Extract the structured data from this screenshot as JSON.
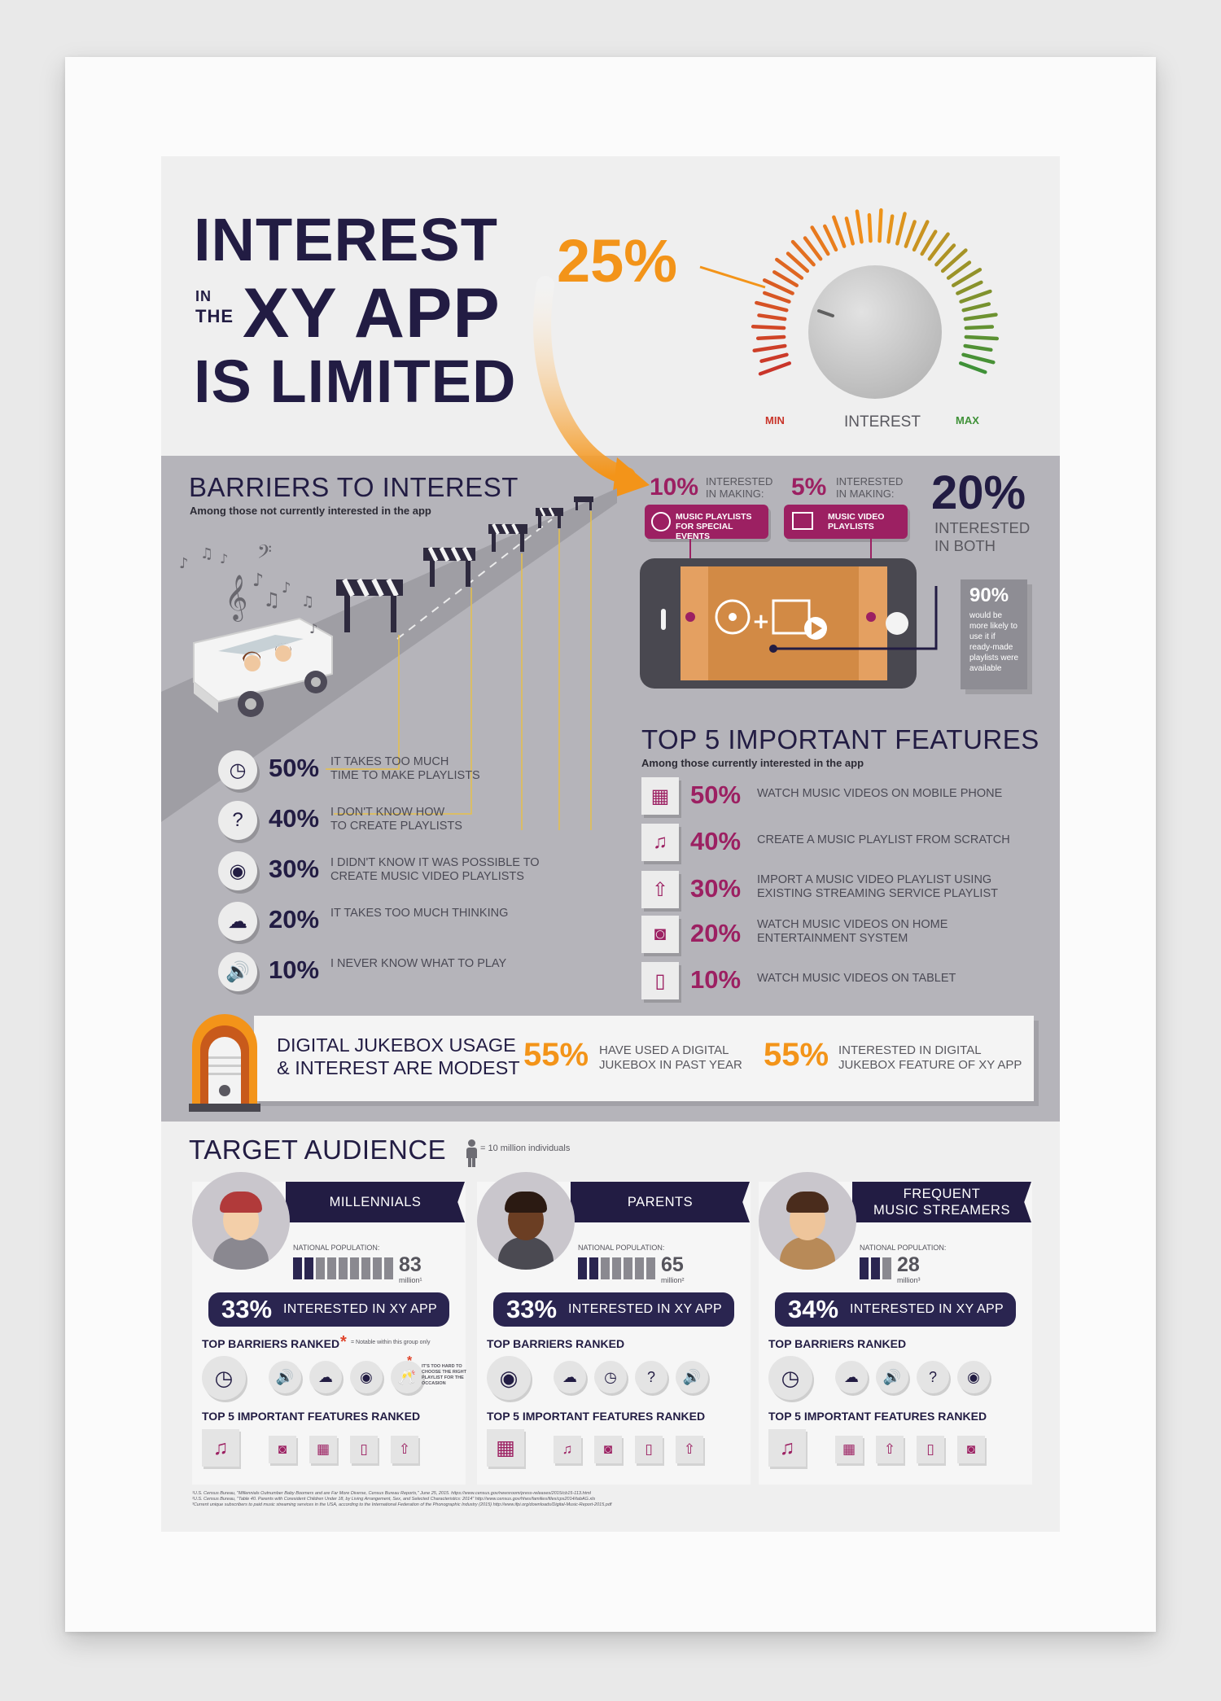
{
  "header": {
    "title_line1": "INTEREST",
    "title_in": "IN",
    "title_the": "THE",
    "title_line2": "XY APP",
    "title_line3": "IS LIMITED"
  },
  "gauge": {
    "percent_label": "25%",
    "level": 0.25,
    "min_label": "MIN",
    "center_label": "INTEREST",
    "max_label": "MAX"
  },
  "barriers": {
    "heading": "BARRIERS TO INTEREST",
    "subheading": "Among those not currently interested in the app",
    "items": [
      {
        "icon": "clock-icon",
        "glyph": "◷",
        "pct": "50%",
        "line1": "IT TAKES TOO MUCH",
        "line2": "TIME TO MAKE PLAYLISTS"
      },
      {
        "icon": "question-icon",
        "glyph": "?",
        "pct": "40%",
        "line1": "I DON'T KNOW HOW",
        "line2": "TO CREATE PLAYLISTS"
      },
      {
        "icon": "disc-icon",
        "glyph": "◉",
        "pct": "30%",
        "line1": "I DIDN'T KNOW IT WAS POSSIBLE TO",
        "line2": "CREATE MUSIC VIDEO PLAYLISTS"
      },
      {
        "icon": "brain-icon",
        "glyph": "☁",
        "pct": "20%",
        "line1": "IT TAKES TOO MUCH THINKING",
        "line2": ""
      },
      {
        "icon": "speaker-icon",
        "glyph": "🔊",
        "pct": "10%",
        "line1": "I NEVER KNOW WHAT TO PLAY",
        "line2": ""
      }
    ]
  },
  "making": {
    "a_pct": "10%",
    "a_label1": "INTERESTED",
    "a_label2": "IN MAKING:",
    "a_tag1": "MUSIC PLAYLISTS",
    "a_tag2": "FOR SPECIAL EVENTS",
    "b_pct": "5%",
    "b_label1": "INTERESTED",
    "b_label2": "IN MAKING:",
    "b_tag1": "MUSIC VIDEO",
    "b_tag2": "PLAYLISTS",
    "both_pct": "20%",
    "both_label1": "INTERESTED",
    "both_label2": "IN BOTH",
    "ready_pct": "90%",
    "ready_text": [
      "would be",
      "more likely to",
      "use it if",
      "ready-made",
      "playlists were",
      "available"
    ]
  },
  "features": {
    "heading": "TOP 5 IMPORTANT FEATURES",
    "subheading": "Among those currently interested in the app",
    "items": [
      {
        "icon": "film-icon",
        "glyph": "▦",
        "pct": "50%",
        "line1": "WATCH MUSIC VIDEOS ON MOBILE PHONE",
        "line2": ""
      },
      {
        "icon": "music-note-icon",
        "glyph": "♫",
        "pct": "40%",
        "line1": "CREATE A MUSIC PLAYLIST FROM SCRATCH",
        "line2": ""
      },
      {
        "icon": "cloud-upload-icon",
        "glyph": "⇧",
        "pct": "30%",
        "line1": "IMPORT A MUSIC VIDEO PLAYLIST USING",
        "line2": "EXISTING STREAMING SERVICE PLAYLIST"
      },
      {
        "icon": "home-speaker-icon",
        "glyph": "◙",
        "pct": "20%",
        "line1": "WATCH MUSIC VIDEOS ON HOME",
        "line2": "ENTERTAINMENT SYSTEM"
      },
      {
        "icon": "tablet-icon",
        "glyph": "▯",
        "pct": "10%",
        "line1": "WATCH MUSIC VIDEOS ON TABLET",
        "line2": ""
      }
    ]
  },
  "jukebox": {
    "title1": "DIGITAL JUKEBOX USAGE",
    "title2": "& INTEREST ARE MODEST",
    "a_pct": "55%",
    "a_line1": "HAVE USED A DIGITAL",
    "a_line2": "JUKEBOX IN PAST YEAR",
    "b_pct": "55%",
    "b_line1": "INTERESTED IN DIGITAL",
    "b_line2": "JUKEBOX FEATURE OF XY APP"
  },
  "audience": {
    "heading": "TARGET AUDIENCE",
    "legend": "= 10 million individuals",
    "groups": [
      {
        "name_line1": "MILLENNIALS",
        "name_line2": "",
        "pop_label": "NATIONAL POPULATION:",
        "pop_value": "83",
        "pop_unit": "million¹",
        "figures": 8.3,
        "pct": "33%",
        "interest": "INTERESTED IN XY APP",
        "barriers_label": "TOP BARRIERS RANKED",
        "notable_note": "= Notable within this group only",
        "barriers": [
          "clock-icon",
          "speaker-icon",
          "brain-icon",
          "disc-icon",
          "cheers-icon"
        ],
        "barrier_glyphs": [
          "◷",
          "🔊",
          "☁",
          "◉",
          "🥂"
        ],
        "special_note": [
          "IT'S TOO HARD TO",
          "CHOOSE THE RIGHT",
          "PLAYLIST FOR THE",
          "OCCASION"
        ],
        "features_label": "TOP 5 IMPORTANT FEATURES RANKED",
        "features": [
          "music-note-icon",
          "home-speaker-icon",
          "film-icon",
          "tablet-icon",
          "cloud-upload-icon"
        ],
        "feature_glyphs": [
          "♫",
          "◙",
          "▦",
          "▯",
          "⇧"
        ]
      },
      {
        "name_line1": "PARENTS",
        "name_line2": "",
        "pop_label": "NATIONAL POPULATION:",
        "pop_value": "65",
        "pop_unit": "million²",
        "figures": 6.5,
        "pct": "33%",
        "interest": "INTERESTED IN XY APP",
        "barriers_label": "TOP BARRIERS RANKED",
        "barriers": [
          "disc-icon",
          "brain-icon",
          "clock-icon",
          "question-icon",
          "speaker-icon"
        ],
        "barrier_glyphs": [
          "◉",
          "☁",
          "◷",
          "?",
          "🔊"
        ],
        "features_label": "TOP 5 IMPORTANT FEATURES RANKED",
        "features": [
          "film-icon",
          "music-note-icon",
          "home-speaker-icon",
          "tablet-icon",
          "cloud-upload-icon"
        ],
        "feature_glyphs": [
          "▦",
          "♫",
          "◙",
          "▯",
          "⇧"
        ]
      },
      {
        "name_line1": "FREQUENT",
        "name_line2": "MUSIC STREAMERS",
        "pop_label": "NATIONAL POPULATION:",
        "pop_value": "28",
        "pop_unit": "million³",
        "figures": 2.8,
        "pct": "34%",
        "interest": "INTERESTED IN XY APP",
        "barriers_label": "TOP BARRIERS RANKED",
        "barriers": [
          "clock-icon",
          "brain-icon",
          "speaker-icon",
          "question-icon",
          "disc-icon"
        ],
        "barrier_glyphs": [
          "◷",
          "☁",
          "🔊",
          "?",
          "◉"
        ],
        "features_label": "TOP 5 IMPORTANT FEATURES RANKED",
        "features": [
          "music-note-icon",
          "film-icon",
          "cloud-upload-icon",
          "tablet-icon",
          "home-speaker-icon"
        ],
        "feature_glyphs": [
          "♫",
          "▦",
          "⇧",
          "▯",
          "◙"
        ]
      }
    ]
  },
  "footnotes": [
    "¹U.S. Census Bureau, \"Millennials Outnumber Baby Boomers and are Far More Diverse, Census Bureau Reports,\" June 25, 2015. https://www.census.gov/newsroom/press-releases/2015/cb15-113.html",
    "²U.S. Census Bureau, \"Table 40. Parents with Coresident Children Under 18, by Living Arrangement, Sex, and Selected Characteristics: 2014\" http://www.census.gov/hhes/families/files/cps2014/tabAG.xls",
    "³Current unique subscribers to paid music streaming services in the USA, according to the International Federation of the Phonographic Industry (2015) http://www.ifpi.org/downloads/Digital-Music-Report-2015.pdf"
  ]
}
